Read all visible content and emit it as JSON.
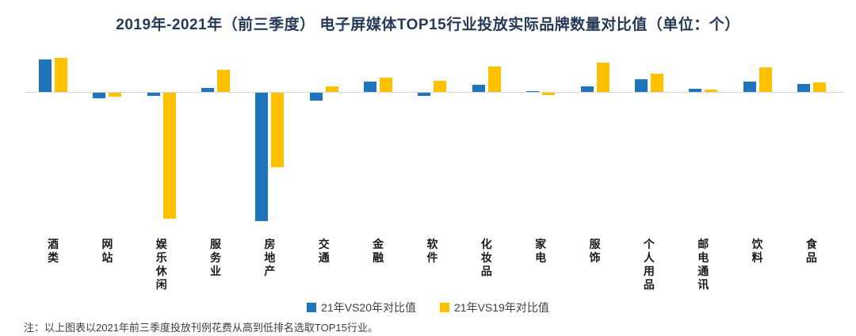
{
  "title": "2019年-2021年（前三季度） 电子屏媒体TOP15行业投放实际品牌数量对比值（单位：个）",
  "note": "注：以上图表以2021年前三季度投放刊例花费从高到低排名选取TOP15行业。",
  "legend": [
    {
      "label": "21年VS20年对比值",
      "color": "#1f74bc"
    },
    {
      "label": "21年VS19年对比值",
      "color": "#ffc000"
    }
  ],
  "colors": {
    "title": "#263a57",
    "axis": "#d6d6d6",
    "blue": "#1f74bc",
    "yellow": "#ffc000"
  },
  "chart_data": {
    "type": "bar",
    "title": "2019年-2021年（前三季度） 电子屏媒体TOP15行业投放实际品牌数量对比值（单位：个）",
    "unit": "个",
    "categories": [
      "酒类",
      "网站",
      "娱乐休闲",
      "服务业",
      "房地产",
      "交通",
      "金融",
      "软件",
      "化妆品",
      "家电",
      "服饰",
      "个人用品",
      "邮电通讯",
      "饮料",
      "食品"
    ],
    "series": [
      {
        "name": "21年VS20年对比值",
        "color": "#1f74bc",
        "values": [
          41,
          -7,
          -4,
          5,
          -162,
          -10,
          13,
          -4,
          9,
          1,
          7,
          16,
          4,
          13,
          10
        ]
      },
      {
        "name": "21年VS19年对比值",
        "color": "#ffc000",
        "values": [
          43,
          -5,
          -159,
          28,
          -94,
          7,
          18,
          14,
          32,
          -3,
          37,
          23,
          3,
          31,
          12
        ]
      }
    ],
    "xlabel": "",
    "ylabel": "",
    "ylim": [
      -170,
      50
    ],
    "grid": false,
    "legend_position": "bottom",
    "baseline": 0
  }
}
